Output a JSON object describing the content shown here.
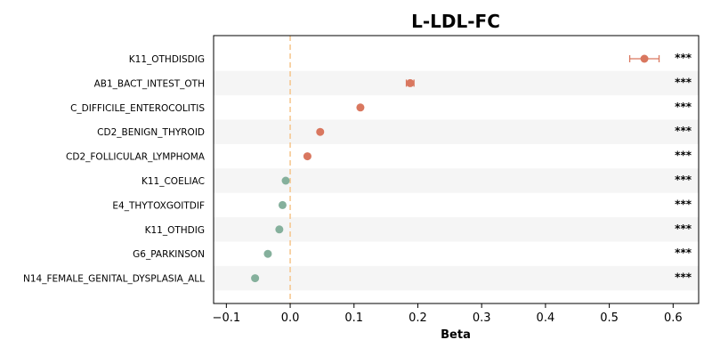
{
  "chart_data": {
    "type": "scatter",
    "title": "L-LDL-FC",
    "xlabel": "Beta",
    "xlim": [
      -0.12,
      0.64
    ],
    "xticks": [
      "-0.1",
      "0.0",
      "0.1",
      "0.2",
      "0.3",
      "0.4",
      "0.5",
      "0.6"
    ],
    "xtick_values": [
      -0.1,
      0.0,
      0.1,
      0.2,
      0.3,
      0.4,
      0.5,
      0.6
    ],
    "reference_line": 0.0,
    "grid": false,
    "alternating_row_shading": true,
    "colors": {
      "positive": "#d9775f",
      "negative": "#85b09c",
      "reference": "#f5c48a",
      "row_shade": "#f5f5f5"
    },
    "rows": [
      {
        "label": "K11_OTHDISDIG",
        "beta": 0.555,
        "ci": [
          0.532,
          0.578
        ],
        "sig": "***"
      },
      {
        "label": "AB1_BACT_INTEST_OTH",
        "beta": 0.188,
        "ci": [
          0.182,
          0.194
        ],
        "sig": "***"
      },
      {
        "label": "C_DIFFICILE_ENTEROCOLITIS",
        "beta": 0.11,
        "ci": [
          0.11,
          0.11
        ],
        "sig": "***"
      },
      {
        "label": "CD2_BENIGN_THYROID",
        "beta": 0.047,
        "ci": [
          0.047,
          0.047
        ],
        "sig": "***"
      },
      {
        "label": "CD2_FOLLICULAR_LYMPHOMA",
        "beta": 0.027,
        "ci": [
          0.027,
          0.027
        ],
        "sig": "***"
      },
      {
        "label": "K11_COELIAC",
        "beta": -0.007,
        "ci": [
          -0.007,
          -0.007
        ],
        "sig": "***"
      },
      {
        "label": "E4_THYTOXGOITDIF",
        "beta": -0.012,
        "ci": [
          -0.012,
          -0.012
        ],
        "sig": "***"
      },
      {
        "label": "K11_OTHDIG",
        "beta": -0.017,
        "ci": [
          -0.017,
          -0.017
        ],
        "sig": "***"
      },
      {
        "label": "G6_PARKINSON",
        "beta": -0.035,
        "ci": [
          -0.035,
          -0.035
        ],
        "sig": "***"
      },
      {
        "label": "N14_FEMALE_GENITAL_DYSPLASIA_ALL",
        "beta": -0.055,
        "ci": [
          -0.055,
          -0.055
        ],
        "sig": "***"
      }
    ]
  }
}
